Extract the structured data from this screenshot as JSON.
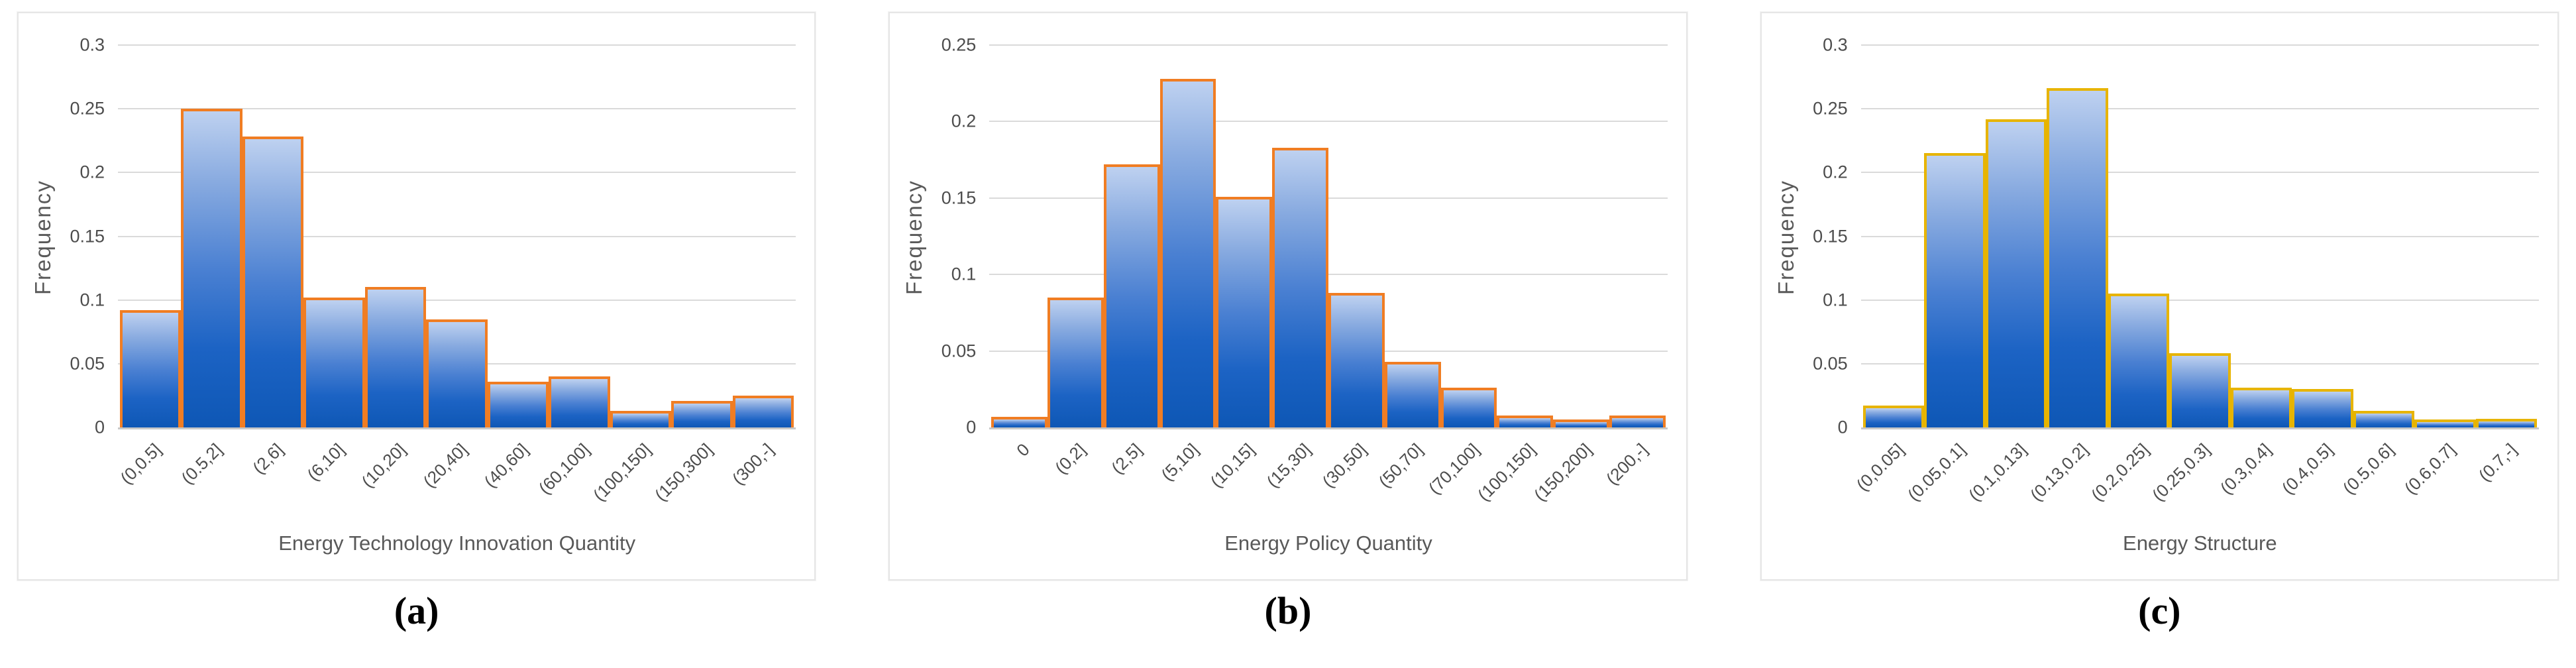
{
  "figure": {
    "background": "#ffffff",
    "panel_border_color": "#e6e6e6",
    "gridline_color": "#dadada",
    "axis_line_color": "#c8c8c8",
    "axis_text_color": "#595959",
    "tick_text_color": "#4d4d4d",
    "bar_gradient_top": "#bed1f0",
    "bar_gradient_bottom": "#0e57b5"
  },
  "chart_data": [
    {
      "type": "bar",
      "panel_label": "(a)",
      "title": "",
      "xlabel": "Energy Technology Innovation Quantity",
      "ylabel": "Frequency",
      "ylim": [
        0,
        0.3
      ],
      "ytick_step": 0.05,
      "grid": true,
      "legend": false,
      "bar_border_color": "#f07d23",
      "categories": [
        "(0,0.5]",
        "(0.5,2]",
        "(2,6]",
        "(6,10]",
        "(10,20]",
        "(20,40]",
        "(40,60]",
        "(60,100]",
        "(100,150]",
        "(150,300]",
        "(300,-]"
      ],
      "values": [
        0.092,
        0.25,
        0.228,
        0.102,
        0.11,
        0.085,
        0.036,
        0.04,
        0.013,
        0.021,
        0.025
      ]
    },
    {
      "type": "bar",
      "panel_label": "(b)",
      "title": "",
      "xlabel": "Energy Policy Quantity",
      "ylabel": "Frequency",
      "ylim": [
        0,
        0.25
      ],
      "ytick_step": 0.05,
      "grid": true,
      "legend": false,
      "bar_border_color": "#f07d23",
      "categories": [
        "0",
        "(0,2]",
        "(2,5]",
        "(5,10]",
        "(10,15]",
        "(15,30]",
        "(30,50]",
        "(50,70]",
        "(70,100]",
        "(100,150]",
        "(150,200]",
        "(200,-]"
      ],
      "values": [
        0.007,
        0.085,
        0.172,
        0.228,
        0.151,
        0.183,
        0.088,
        0.043,
        0.026,
        0.008,
        0.005,
        0.008
      ]
    },
    {
      "type": "bar",
      "panel_label": "(c)",
      "title": "",
      "xlabel": "Energy Structure",
      "ylabel": "Frequency",
      "ylim": [
        0,
        0.3
      ],
      "ytick_step": 0.05,
      "grid": true,
      "legend": false,
      "bar_border_color": "#e7b400",
      "categories": [
        "(0,0.05]",
        "(0.05,0.1]",
        "(0.1,0.13]",
        "(0.13,0.2]",
        "(0.2,0.25]",
        "(0.25,0.3]",
        "(0.3,0.4]",
        "(0.4,0.5]",
        "(0.5,0.6]",
        "(0.6,0.7]",
        "(0.7,-]"
      ],
      "values": [
        0.017,
        0.215,
        0.242,
        0.266,
        0.105,
        0.058,
        0.031,
        0.03,
        0.013,
        0.006,
        0.007
      ]
    }
  ]
}
